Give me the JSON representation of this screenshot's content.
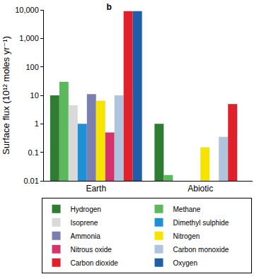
{
  "chart_data": {
    "type": "bar",
    "title": "b",
    "y_label": "Surface flux (10¹² moles yr⁻¹)",
    "categories": [
      "Earth",
      "Abiotic"
    ],
    "log": "y",
    "grid": false,
    "legend": "bottom",
    "ylim": [
      0.01,
      10000
    ],
    "yticks": [
      0.01,
      0.1,
      1,
      10,
      100,
      {
        "value": 1000,
        "label": "1,000"
      },
      {
        "value": 10000,
        "label": "10,000"
      }
    ],
    "series": [
      {
        "name": "Hydrogen",
        "color": "#2e7d32",
        "values": [
          10,
          1
        ]
      },
      {
        "name": "Methane",
        "color": "#5cb85c",
        "values": [
          30,
          0.016
        ]
      },
      {
        "name": "Isoprene",
        "color": "#d9d9d9",
        "values": [
          4.5,
          null
        ]
      },
      {
        "name": "Dimethyl sulphide",
        "color": "#1e90d6",
        "values": [
          1,
          null
        ]
      },
      {
        "name": "Ammonia",
        "color": "#7b7fb0",
        "values": [
          11,
          null
        ]
      },
      {
        "name": "Nitrogen",
        "color": "#f5e400",
        "values": [
          6.5,
          0.15
        ]
      },
      {
        "name": "Nitrous oxide",
        "color": "#d6336c",
        "values": [
          0.5,
          null
        ]
      },
      {
        "name": "Carbon monoxide",
        "color": "#b0c4de",
        "values": [
          10,
          0.35
        ]
      },
      {
        "name": "Carbon dioxide",
        "color": "#e0202a",
        "values": [
          9000,
          5
        ]
      },
      {
        "name": "Oxygen",
        "color": "#1f5fa8",
        "values": [
          9000,
          null
        ]
      }
    ]
  }
}
